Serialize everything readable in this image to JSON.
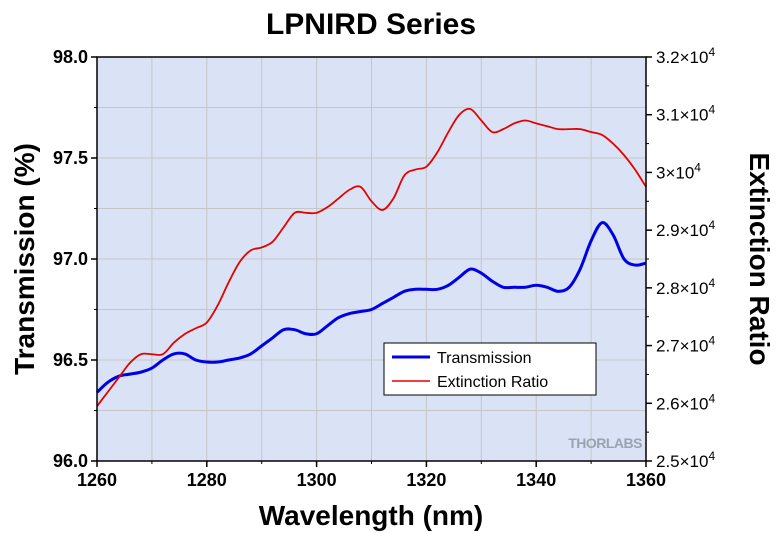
{
  "chart_data": {
    "type": "line",
    "title": "LPNIRD Series",
    "xlabel": "Wavelength (nm)",
    "ylabel_left": "Transmission (%)",
    "ylabel_right": "Extinction Ratio",
    "xlim": [
      1260,
      1360
    ],
    "ylim_left": [
      96.0,
      98.0
    ],
    "ylim_right": [
      25000,
      32000
    ],
    "x_ticks": [
      "1260",
      "1280",
      "1300",
      "1320",
      "1340",
      "1360"
    ],
    "x_tick_values": [
      1260,
      1280,
      1300,
      1320,
      1340,
      1360
    ],
    "y_left_ticks": [
      "96.0",
      "96.5",
      "97.0",
      "97.5",
      "98.0"
    ],
    "y_left_tick_values": [
      96.0,
      96.5,
      97.0,
      97.5,
      98.0
    ],
    "y_right_ticks": [
      {
        "value": 25000,
        "mantissa": "2.5"
      },
      {
        "value": 26000,
        "mantissa": "2.6"
      },
      {
        "value": 27000,
        "mantissa": "2.7"
      },
      {
        "value": 28000,
        "mantissa": "2.8"
      },
      {
        "value": 29000,
        "mantissa": "2.9"
      },
      {
        "value": 30000,
        "mantissa": "3"
      },
      {
        "value": 31000,
        "mantissa": "3.1"
      },
      {
        "value": 32000,
        "mantissa": "3.2"
      }
    ],
    "y_right_tick_suffix": "×10",
    "y_right_tick_exponent": "4",
    "grid": true,
    "legend_position": "lower-right",
    "watermark": "THORLABS",
    "plot_background": "#d9e3f5",
    "series": [
      {
        "name": "Transmission",
        "axis": "left",
        "color": "#0000e6",
        "x": [
          1260,
          1262,
          1264,
          1266,
          1268,
          1270,
          1272,
          1274,
          1276,
          1278,
          1280,
          1282,
          1284,
          1286,
          1288,
          1290,
          1292,
          1294,
          1296,
          1298,
          1300,
          1302,
          1304,
          1306,
          1308,
          1310,
          1312,
          1314,
          1316,
          1318,
          1320,
          1322,
          1324,
          1326,
          1328,
          1330,
          1332,
          1334,
          1336,
          1338,
          1340,
          1342,
          1344,
          1346,
          1348,
          1350,
          1352,
          1354,
          1356,
          1358,
          1360
        ],
        "y": [
          96.34,
          96.39,
          96.42,
          96.43,
          96.44,
          96.46,
          96.5,
          96.53,
          96.53,
          96.5,
          96.49,
          96.49,
          96.5,
          96.51,
          96.53,
          96.57,
          96.61,
          96.65,
          96.65,
          96.63,
          96.63,
          96.67,
          96.71,
          96.73,
          96.74,
          96.75,
          96.78,
          96.81,
          96.84,
          96.85,
          96.85,
          96.85,
          96.87,
          96.91,
          96.95,
          96.93,
          96.89,
          96.86,
          96.86,
          96.86,
          96.87,
          96.86,
          96.84,
          96.86,
          96.95,
          97.09,
          97.18,
          97.12,
          97.0,
          96.97,
          96.98
        ]
      },
      {
        "name": "Extinction Ratio",
        "axis": "right",
        "color": "#e60000",
        "x": [
          1260,
          1262,
          1264,
          1266,
          1268,
          1270,
          1272,
          1274,
          1276,
          1278,
          1280,
          1282,
          1284,
          1286,
          1288,
          1290,
          1292,
          1294,
          1296,
          1298,
          1300,
          1302,
          1304,
          1306,
          1308,
          1310,
          1312,
          1314,
          1316,
          1318,
          1320,
          1322,
          1324,
          1326,
          1328,
          1330,
          1332,
          1334,
          1336,
          1338,
          1340,
          1342,
          1344,
          1346,
          1348,
          1350,
          1352,
          1354,
          1356,
          1358,
          1360
        ],
        "y": [
          25950,
          26200,
          26450,
          26700,
          26850,
          26850,
          26850,
          27050,
          27200,
          27300,
          27400,
          27700,
          28100,
          28450,
          28650,
          28700,
          28800,
          29050,
          29300,
          29300,
          29300,
          29400,
          29550,
          29700,
          29750,
          29500,
          29350,
          29550,
          29950,
          30050,
          30100,
          30350,
          30700,
          31000,
          31100,
          30900,
          30700,
          30750,
          30850,
          30900,
          30850,
          30800,
          30750,
          30750,
          30750,
          30700,
          30650,
          30500,
          30300,
          30050,
          29750
        ]
      }
    ]
  }
}
